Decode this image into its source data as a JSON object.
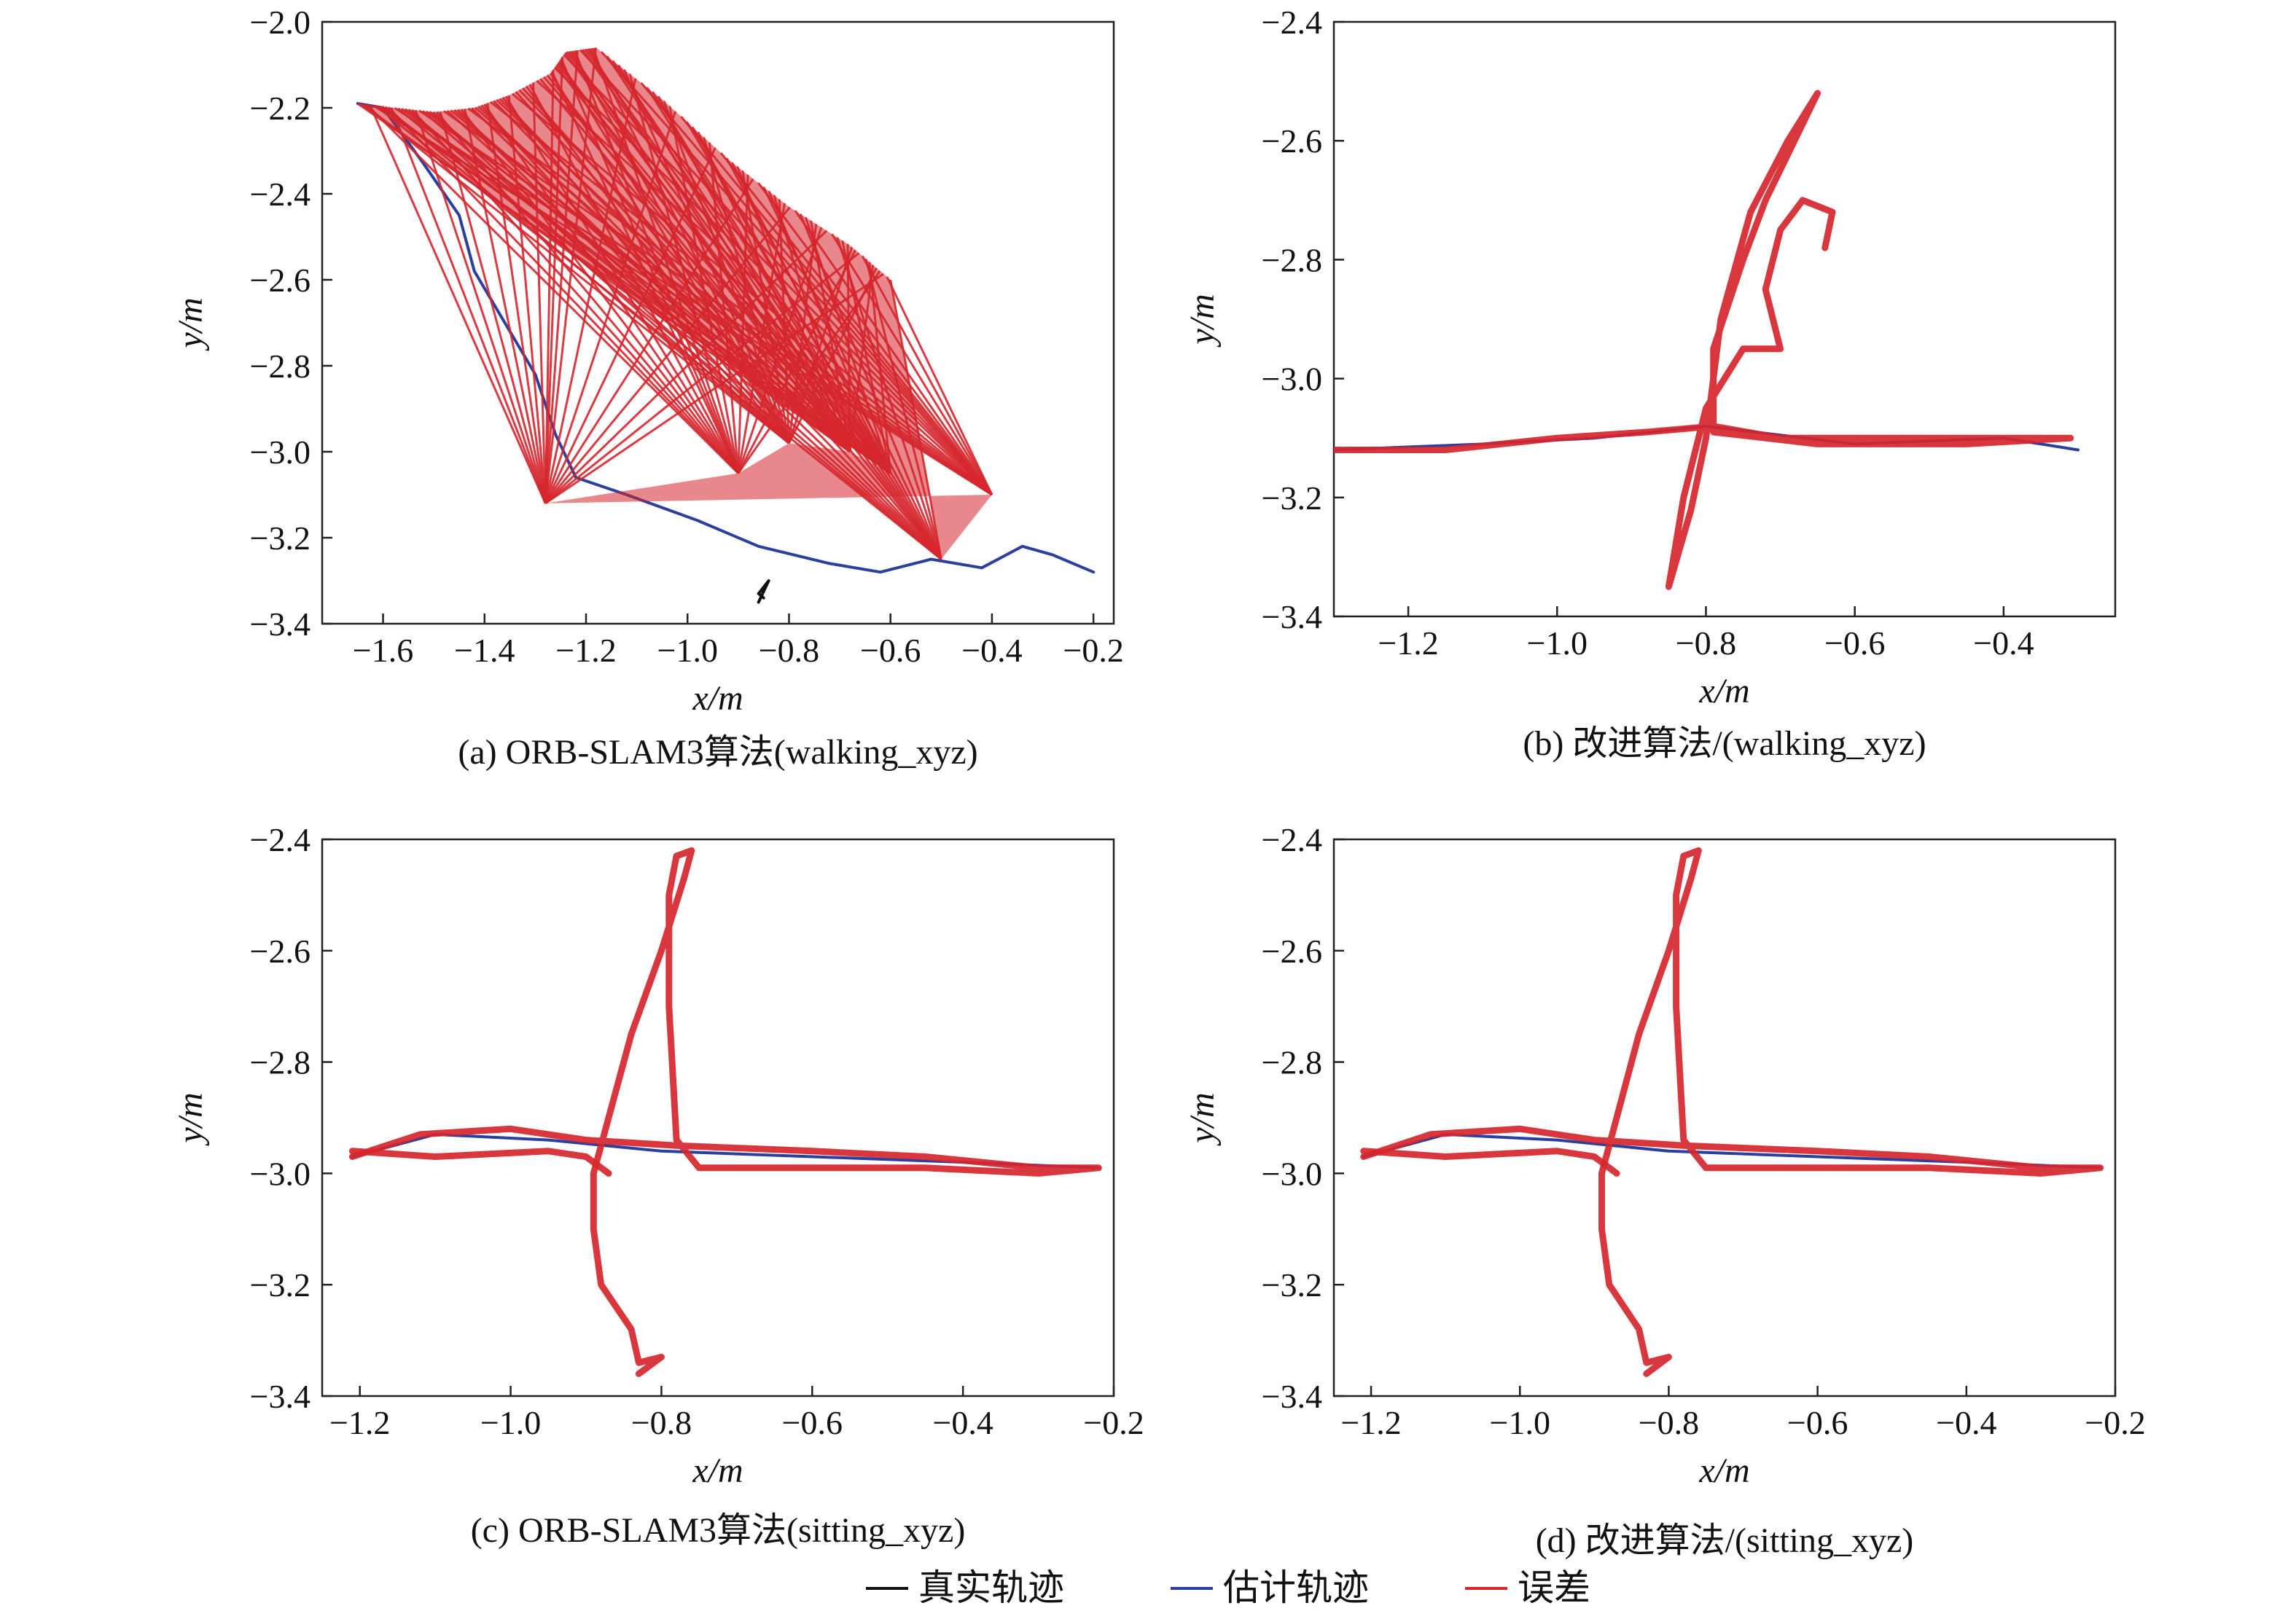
{
  "legend": [
    {
      "label": "真实轨迹",
      "color": "#111111",
      "role": "ground-truth"
    },
    {
      "label": "估计轨迹",
      "color": "#2b3f9e",
      "role": "estimate"
    },
    {
      "label": "误差",
      "color": "#d6262e",
      "role": "error"
    }
  ],
  "chart_data": [
    {
      "type": "line",
      "caption": "(a) ORB-SLAM3算法(walking_xyz)",
      "xlabel": "x/m",
      "ylabel": "y/m",
      "xlim": [
        -1.72,
        -0.16
      ],
      "ylim": [
        -3.4,
        -2.0
      ],
      "xticks": [
        -1.6,
        -1.4,
        -1.2,
        -1.0,
        -0.8,
        -0.6,
        -0.4,
        -0.2
      ],
      "yticks": [
        -2.0,
        -2.2,
        -2.4,
        -2.6,
        -2.8,
        -3.0,
        -3.2,
        -3.4
      ],
      "series": [
        {
          "name": "真实轨迹",
          "color": "#111111",
          "points": [
            [
              -0.86,
              -3.35
            ],
            [
              -0.84,
              -3.3
            ],
            [
              -0.86,
              -3.33
            ],
            [
              -0.85,
              -3.34
            ]
          ]
        },
        {
          "name": "估计轨迹",
          "color": "#2b3f9e",
          "points": [
            [
              -1.65,
              -2.19
            ],
            [
              -1.6,
              -2.2
            ],
            [
              -1.52,
              -2.33
            ],
            [
              -1.45,
              -2.45
            ],
            [
              -1.42,
              -2.58
            ],
            [
              -1.36,
              -2.7
            ],
            [
              -1.3,
              -2.82
            ],
            [
              -1.26,
              -2.96
            ],
            [
              -1.22,
              -3.06
            ],
            [
              -1.12,
              -3.1
            ],
            [
              -0.98,
              -3.16
            ],
            [
              -0.86,
              -3.22
            ],
            [
              -0.72,
              -3.26
            ],
            [
              -0.62,
              -3.28
            ],
            [
              -0.52,
              -3.25
            ],
            [
              -0.42,
              -3.27
            ],
            [
              -0.34,
              -3.22
            ],
            [
              -0.28,
              -3.24
            ],
            [
              -0.2,
              -3.28
            ]
          ]
        },
        {
          "name": "误差",
          "color": "#d6262e",
          "fan_top": [
            [
              -1.65,
              -2.19
            ],
            [
              -1.58,
              -2.2
            ],
            [
              -1.5,
              -2.21
            ],
            [
              -1.42,
              -2.2
            ],
            [
              -1.35,
              -2.17
            ],
            [
              -1.27,
              -2.12
            ],
            [
              -1.24,
              -2.07
            ],
            [
              -1.18,
              -2.06
            ],
            [
              -1.05,
              -2.18
            ],
            [
              -0.92,
              -2.32
            ],
            [
              -0.8,
              -2.43
            ],
            [
              -0.68,
              -2.52
            ],
            [
              -0.6,
              -2.6
            ]
          ],
          "fan_apex": [
            [
              -0.6,
              -3.05
            ],
            [
              -0.68,
              -3.0
            ],
            [
              -0.8,
              -2.98
            ],
            [
              -0.9,
              -3.05
            ],
            [
              -1.28,
              -3.12
            ],
            [
              -0.4,
              -3.1
            ],
            [
              -0.5,
              -3.25
            ]
          ]
        }
      ]
    },
    {
      "type": "line",
      "caption": "(b) 改进算法/(walking_xyz)",
      "xlabel": "x/m",
      "ylabel": "y/m",
      "xlim": [
        -1.3,
        -0.25
      ],
      "ylim": [
        -3.4,
        -2.4
      ],
      "xticks": [
        -1.2,
        -1.0,
        -0.8,
        -0.6,
        -0.4
      ],
      "yticks": [
        -2.4,
        -2.6,
        -2.8,
        -3.0,
        -3.2,
        -3.4
      ],
      "series": [
        {
          "name": "估计轨迹",
          "color": "#2b3f9e",
          "points": [
            [
              -1.3,
              -3.12
            ],
            [
              -1.1,
              -3.11
            ],
            [
              -0.95,
              -3.1
            ],
            [
              -0.8,
              -3.08
            ],
            [
              -0.6,
              -3.11
            ],
            [
              -0.4,
              -3.1
            ],
            [
              -0.3,
              -3.12
            ]
          ]
        },
        {
          "name": "误差",
          "color": "#d6262e",
          "points": [
            [
              -1.3,
              -3.12
            ],
            [
              -1.15,
              -3.12
            ],
            [
              -1.0,
              -3.1
            ],
            [
              -0.88,
              -3.09
            ],
            [
              -0.79,
              -3.08
            ],
            [
              -0.7,
              -3.1
            ],
            [
              -0.55,
              -3.1
            ],
            [
              -0.42,
              -3.1
            ],
            [
              -0.31,
              -3.1
            ],
            [
              -0.45,
              -3.11
            ],
            [
              -0.65,
              -3.11
            ],
            [
              -0.79,
              -3.09
            ],
            [
              -0.79,
              -2.95
            ],
            [
              -0.75,
              -2.8
            ],
            [
              -0.72,
              -2.7
            ],
            [
              -0.65,
              -2.52
            ],
            [
              -0.69,
              -2.6
            ],
            [
              -0.74,
              -2.72
            ],
            [
              -0.78,
              -2.9
            ],
            [
              -0.8,
              -3.1
            ],
            [
              -0.82,
              -3.22
            ],
            [
              -0.85,
              -3.35
            ],
            [
              -0.83,
              -3.2
            ],
            [
              -0.8,
              -3.05
            ],
            [
              -0.75,
              -2.95
            ],
            [
              -0.7,
              -2.95
            ],
            [
              -0.72,
              -2.85
            ],
            [
              -0.7,
              -2.75
            ],
            [
              -0.67,
              -2.7
            ],
            [
              -0.63,
              -2.72
            ],
            [
              -0.64,
              -2.78
            ]
          ]
        }
      ]
    },
    {
      "type": "line",
      "caption": "(c) ORB-SLAM3算法(sitting_xyz)",
      "xlabel": "x/m",
      "ylabel": "y/m",
      "xlim": [
        -1.25,
        -0.2
      ],
      "ylim": [
        -3.4,
        -2.4
      ],
      "xticks": [
        -1.2,
        -1.0,
        -0.8,
        -0.6,
        -0.4,
        -0.2
      ],
      "yticks": [
        -2.4,
        -2.6,
        -2.8,
        -3.0,
        -3.2,
        -3.4
      ],
      "series": [
        {
          "name": "估计轨迹",
          "color": "#2b3f9e",
          "points": [
            [
              -1.21,
              -2.97
            ],
            [
              -1.1,
              -2.93
            ],
            [
              -0.95,
              -2.94
            ],
            [
              -0.8,
              -2.96
            ],
            [
              -0.6,
              -2.97
            ],
            [
              -0.4,
              -2.98
            ],
            [
              -0.22,
              -2.99
            ]
          ]
        },
        {
          "name": "误差",
          "color": "#d6262e",
          "points": [
            [
              -1.21,
              -2.97
            ],
            [
              -1.12,
              -2.93
            ],
            [
              -1.0,
              -2.92
            ],
            [
              -0.9,
              -2.94
            ],
            [
              -0.78,
              -2.95
            ],
            [
              -0.6,
              -2.96
            ],
            [
              -0.45,
              -2.97
            ],
            [
              -0.3,
              -2.99
            ],
            [
              -0.22,
              -2.99
            ],
            [
              -0.3,
              -3.0
            ],
            [
              -0.45,
              -2.99
            ],
            [
              -0.6,
              -2.99
            ],
            [
              -0.75,
              -2.99
            ],
            [
              -0.78,
              -2.94
            ],
            [
              -0.79,
              -2.7
            ],
            [
              -0.79,
              -2.5
            ],
            [
              -0.78,
              -2.43
            ],
            [
              -0.76,
              -2.42
            ],
            [
              -0.77,
              -2.47
            ],
            [
              -0.8,
              -2.6
            ],
            [
              -0.84,
              -2.75
            ],
            [
              -0.87,
              -2.9
            ],
            [
              -0.89,
              -3.0
            ],
            [
              -0.89,
              -3.1
            ],
            [
              -0.88,
              -3.2
            ],
            [
              -0.84,
              -3.28
            ],
            [
              -0.83,
              -3.34
            ],
            [
              -0.8,
              -3.33
            ],
            [
              -0.83,
              -3.36
            ]
          ]
        },
        {
          "name": "误差",
          "color": "#d6262e",
          "points": [
            [
              -1.21,
              -2.96
            ],
            [
              -1.1,
              -2.97
            ],
            [
              -0.95,
              -2.96
            ],
            [
              -0.9,
              -2.97
            ],
            [
              -0.87,
              -3.0
            ]
          ]
        }
      ]
    },
    {
      "type": "line",
      "caption": "(d) 改进算法/(sitting_xyz)",
      "xlabel": "x/m",
      "ylabel": "y/m",
      "xlim": [
        -1.25,
        -0.2
      ],
      "ylim": [
        -3.4,
        -2.4
      ],
      "xticks": [
        -1.2,
        -1.0,
        -0.8,
        -0.6,
        -0.4,
        -0.2
      ],
      "yticks": [
        -2.4,
        -2.6,
        -2.8,
        -3.0,
        -3.2,
        -3.4
      ],
      "series": [
        {
          "name": "估计轨迹",
          "color": "#2b3f9e",
          "points": [
            [
              -1.21,
              -2.97
            ],
            [
              -1.1,
              -2.93
            ],
            [
              -0.95,
              -2.94
            ],
            [
              -0.8,
              -2.96
            ],
            [
              -0.6,
              -2.97
            ],
            [
              -0.4,
              -2.98
            ],
            [
              -0.22,
              -2.99
            ]
          ]
        },
        {
          "name": "误差",
          "color": "#d6262e",
          "points": [
            [
              -1.21,
              -2.97
            ],
            [
              -1.12,
              -2.93
            ],
            [
              -1.0,
              -2.92
            ],
            [
              -0.9,
              -2.94
            ],
            [
              -0.78,
              -2.95
            ],
            [
              -0.6,
              -2.96
            ],
            [
              -0.45,
              -2.97
            ],
            [
              -0.3,
              -2.99
            ],
            [
              -0.22,
              -2.99
            ],
            [
              -0.3,
              -3.0
            ],
            [
              -0.45,
              -2.99
            ],
            [
              -0.6,
              -2.99
            ],
            [
              -0.75,
              -2.99
            ],
            [
              -0.78,
              -2.94
            ],
            [
              -0.79,
              -2.7
            ],
            [
              -0.79,
              -2.5
            ],
            [
              -0.78,
              -2.43
            ],
            [
              -0.76,
              -2.42
            ],
            [
              -0.77,
              -2.47
            ],
            [
              -0.8,
              -2.6
            ],
            [
              -0.84,
              -2.75
            ],
            [
              -0.87,
              -2.9
            ],
            [
              -0.89,
              -3.0
            ],
            [
              -0.89,
              -3.1
            ],
            [
              -0.88,
              -3.2
            ],
            [
              -0.84,
              -3.28
            ],
            [
              -0.83,
              -3.34
            ],
            [
              -0.8,
              -3.33
            ],
            [
              -0.83,
              -3.36
            ]
          ]
        },
        {
          "name": "误差",
          "color": "#d6262e",
          "points": [
            [
              -1.21,
              -2.96
            ],
            [
              -1.1,
              -2.97
            ],
            [
              -0.95,
              -2.96
            ],
            [
              -0.9,
              -2.97
            ],
            [
              -0.87,
              -3.0
            ]
          ]
        }
      ]
    }
  ]
}
